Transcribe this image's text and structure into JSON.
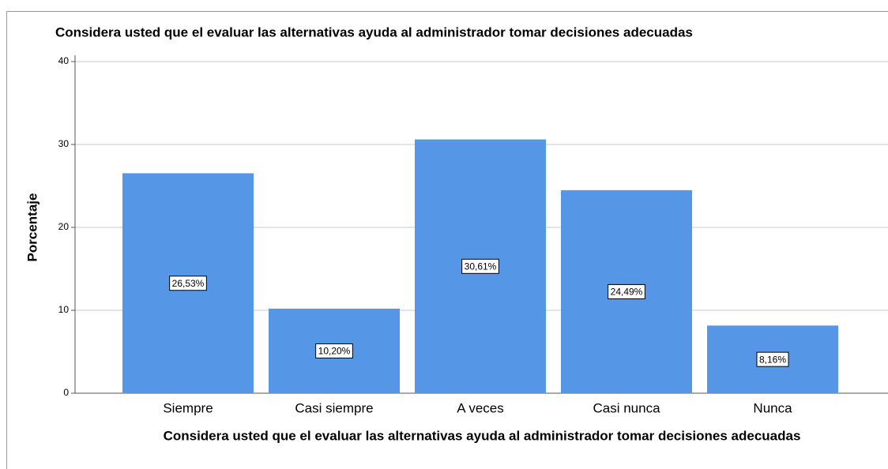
{
  "chart_data": {
    "type": "bar",
    "title": "Considera usted que el evaluar las alternativas ayuda al administrador tomar decisiones adecuadas",
    "x_label": "Considera usted que el evaluar las alternativas ayuda al administrador tomar decisiones adecuadas",
    "y_label": "Porcentaje",
    "categories": [
      "Siempre",
      "Casi siempre",
      "A veces",
      "Casi nunca",
      "Nunca"
    ],
    "values": [
      26.53,
      10.2,
      30.61,
      24.49,
      8.16
    ],
    "value_labels": [
      "26,53%",
      "10,20%",
      "30,61%",
      "24,49%",
      "8,16%"
    ],
    "color": "#5596e6",
    "ylim": [
      0,
      40
    ],
    "yticks": [
      0,
      10,
      20,
      30,
      40
    ],
    "grid": true
  }
}
